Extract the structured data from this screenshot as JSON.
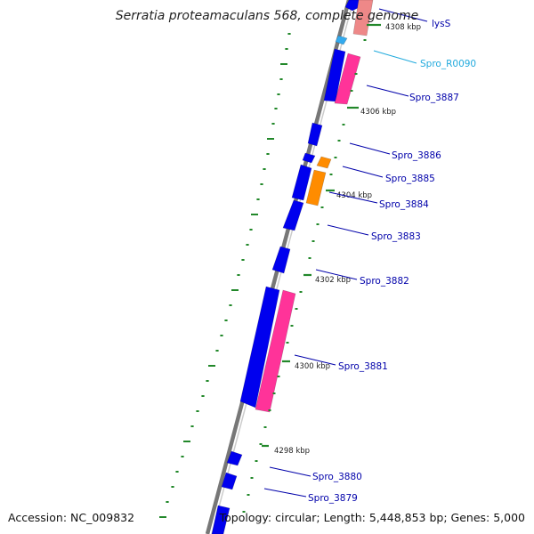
{
  "title": "Serratia proteamaculans 568, complete genome",
  "accession": "Accession: NC_009832",
  "topology": "Topology: circular; Length: 5,448,853 bp; Genes: 5,000",
  "colors": {
    "backbone": "#999999",
    "forward_gene": "#0000ee",
    "reverse_gene": "#ff3399",
    "partial_gene": "#ee8888",
    "orange_gene": "#ff8c00",
    "rna_gene": "#33aaee",
    "dash": "#22882a",
    "label": "#0000aa",
    "rna_label": "#22aadd"
  },
  "ticks": [
    {
      "text": "4308 kbp"
    },
    {
      "text": "4306 kbp"
    },
    {
      "text": "4304 kbp"
    },
    {
      "text": "4302 kbp"
    },
    {
      "text": "4300 kbp"
    },
    {
      "text": "4298 kbp"
    }
  ],
  "gene_labels": [
    {
      "text": "lysS",
      "kind": "gene"
    },
    {
      "text": "Spro_R0090",
      "kind": "rna"
    },
    {
      "text": "Spro_3887",
      "kind": "gene"
    },
    {
      "text": "Spro_3886",
      "kind": "gene"
    },
    {
      "text": "Spro_3885",
      "kind": "gene"
    },
    {
      "text": "Spro_3884",
      "kind": "gene"
    },
    {
      "text": "Spro_3883",
      "kind": "gene"
    },
    {
      "text": "Spro_3882",
      "kind": "gene"
    },
    {
      "text": "Spro_3881",
      "kind": "gene"
    },
    {
      "text": "Spro_3880",
      "kind": "gene"
    },
    {
      "text": "Spro_3879",
      "kind": "gene"
    }
  ]
}
